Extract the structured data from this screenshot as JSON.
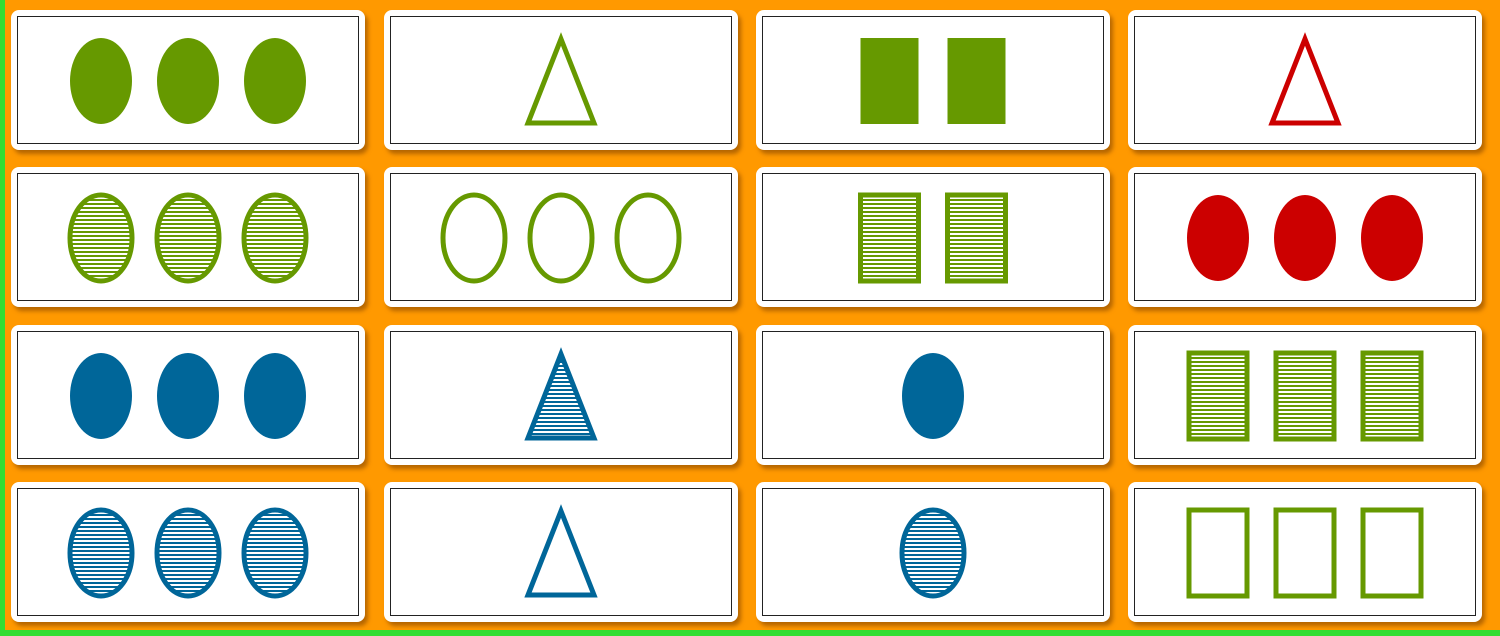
{
  "colors": {
    "green": "#669900",
    "red": "#cc0000",
    "blue": "#006699"
  },
  "cards": [
    {
      "count": 3,
      "shape": "oval",
      "fill": "solid",
      "color": "green"
    },
    {
      "count": 1,
      "shape": "triangle",
      "fill": "outline",
      "color": "green"
    },
    {
      "count": 2,
      "shape": "rect",
      "fill": "solid",
      "color": "green"
    },
    {
      "count": 1,
      "shape": "triangle",
      "fill": "outline",
      "color": "red"
    },
    {
      "count": 3,
      "shape": "oval",
      "fill": "striped",
      "color": "green"
    },
    {
      "count": 3,
      "shape": "oval",
      "fill": "outline",
      "color": "green"
    },
    {
      "count": 2,
      "shape": "rect",
      "fill": "striped",
      "color": "green"
    },
    {
      "count": 3,
      "shape": "oval",
      "fill": "solid",
      "color": "red"
    },
    {
      "count": 3,
      "shape": "oval",
      "fill": "solid",
      "color": "blue"
    },
    {
      "count": 1,
      "shape": "triangle",
      "fill": "striped",
      "color": "blue"
    },
    {
      "count": 1,
      "shape": "oval",
      "fill": "solid",
      "color": "blue"
    },
    {
      "count": 3,
      "shape": "rect",
      "fill": "striped",
      "color": "green"
    },
    {
      "count": 3,
      "shape": "oval",
      "fill": "striped",
      "color": "blue"
    },
    {
      "count": 1,
      "shape": "triangle",
      "fill": "outline",
      "color": "blue"
    },
    {
      "count": 1,
      "shape": "oval",
      "fill": "striped",
      "color": "blue"
    },
    {
      "count": 3,
      "shape": "rect",
      "fill": "outline",
      "color": "green"
    }
  ]
}
